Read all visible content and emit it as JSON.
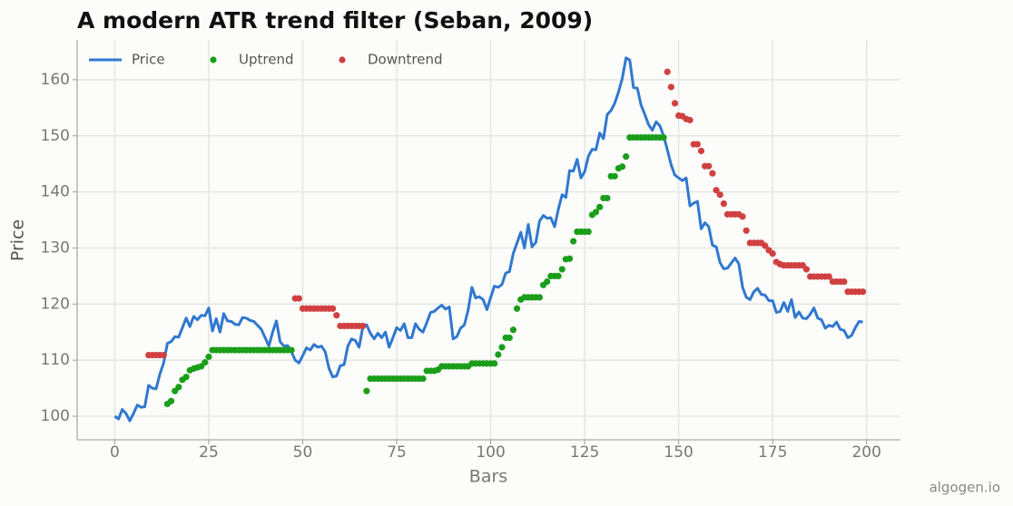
{
  "chart_data": {
    "type": "line",
    "title": "A modern ATR trend filter (Seban, 2009)",
    "xlabel": "Bars",
    "ylabel": "Price",
    "watermark": "algogen.io",
    "xlim": [
      -10,
      209
    ],
    "ylim": [
      95.8,
      167.1
    ],
    "xticks": [
      0,
      25,
      50,
      75,
      100,
      125,
      150,
      175,
      200
    ],
    "yticks": [
      100,
      110,
      120,
      130,
      140,
      150,
      160
    ],
    "grid": true,
    "legend": "upper left",
    "series": [
      {
        "name": "Price",
        "type": "line",
        "color": "#3078d0",
        "x": [
          0,
          1,
          2,
          3,
          4,
          5,
          6,
          7,
          8,
          9,
          10,
          11,
          12,
          13,
          14,
          15,
          16,
          17,
          18,
          19,
          20,
          21,
          22,
          23,
          24,
          25,
          26,
          27,
          28,
          29,
          30,
          31,
          32,
          33,
          34,
          35,
          36,
          37,
          38,
          39,
          40,
          41,
          42,
          43,
          44,
          45,
          46,
          47,
          48,
          49,
          50,
          51,
          52,
          53,
          54,
          55,
          56,
          57,
          58,
          59,
          60,
          61,
          62,
          63,
          64,
          65,
          66,
          67,
          68,
          69,
          70,
          71,
          72,
          73,
          74,
          75,
          76,
          77,
          78,
          79,
          80,
          81,
          82,
          83,
          84,
          85,
          86,
          87,
          88,
          89,
          90,
          91,
          92,
          93,
          94,
          95,
          96,
          97,
          98,
          99,
          100,
          101,
          102,
          103,
          104,
          105,
          106,
          107,
          108,
          109,
          110,
          111,
          112,
          113,
          114,
          115,
          116,
          117,
          118,
          119,
          120,
          121,
          122,
          123,
          124,
          125,
          126,
          127,
          128,
          129,
          130,
          131,
          132,
          133,
          134,
          135,
          136,
          137,
          138,
          139,
          140,
          141,
          142,
          143,
          144,
          145,
          146,
          147,
          148,
          149,
          150,
          151,
          152,
          153,
          154,
          155,
          156,
          157,
          158,
          159,
          160,
          161,
          162,
          163,
          164,
          165,
          166,
          167,
          168,
          169,
          170,
          171,
          172,
          173,
          174,
          175,
          176,
          177,
          178,
          179,
          180,
          181,
          182,
          183,
          184,
          185,
          186,
          187,
          188,
          189,
          190,
          191,
          192,
          193,
          194,
          195,
          196,
          197,
          198,
          199
        ],
        "values": [
          100,
          99.5,
          101.2,
          100.5,
          99.2,
          100.5,
          102,
          101.6,
          101.7,
          105.5,
          105,
          104.9,
          107.5,
          109.5,
          113,
          113.3,
          114.2,
          114.1,
          115.8,
          117.5,
          116,
          117.8,
          117.2,
          118,
          117.9,
          119.3,
          115.2,
          117.4,
          115,
          118.3,
          117,
          116.9,
          116.4,
          116.3,
          117.6,
          117.5,
          117.1,
          116.9,
          116.2,
          115.5,
          114,
          112.5,
          115,
          117,
          113.3,
          112.5,
          112.6,
          111.5,
          110,
          109.5,
          110.8,
          112.2,
          111.8,
          112.8,
          112.3,
          112.5,
          111.5,
          108.5,
          107,
          107.2,
          109,
          109.2,
          112.5,
          113.8,
          113.5,
          112.3,
          116,
          116.3,
          114.8,
          113.8,
          114.8,
          114,
          115,
          112.3,
          114,
          115.8,
          115.3,
          116.5,
          114,
          114,
          116.5,
          115.5,
          115,
          116.7,
          118.5,
          118.7,
          119.3,
          119.8,
          119.1,
          119.5,
          113.8,
          114.2,
          115.7,
          116.3,
          118.9,
          123,
          121.1,
          121.3,
          120.8,
          119,
          121.2,
          123.2,
          123,
          123.5,
          125.5,
          125.8,
          129,
          130.9,
          132.8,
          130,
          134.2,
          130.2,
          131,
          134.8,
          135.8,
          135.3,
          135.4,
          133.8,
          136.9,
          139.5,
          139,
          143.8,
          143.7,
          145.8,
          142.5,
          143.6,
          146.4,
          147.6,
          147.5,
          150.5,
          149.5,
          153.8,
          154.5,
          155.8,
          157.8,
          160.2,
          163.9,
          163.5,
          158.6,
          158.5,
          155.5,
          153.8,
          152,
          151,
          152.5,
          151.8,
          150,
          147.5,
          144.8,
          143,
          142.5,
          142,
          142.5,
          137.5,
          138,
          138.3,
          133.4,
          134.5,
          133.8,
          130.5,
          130.2,
          127.4,
          126.3,
          126.4,
          127.3,
          128.2,
          127.2,
          123,
          121.2,
          120.8,
          122.2,
          122.8,
          121.7,
          121.6,
          120.6,
          120.6,
          118.5,
          118.7,
          120.3,
          118.7,
          120.8,
          117.6,
          118.6,
          117.5,
          117.4,
          118.2,
          119.3,
          117.5,
          117.2,
          115.7,
          116.2,
          116,
          116.8,
          115.5,
          115.3,
          114,
          114.4,
          115.8,
          116.9,
          116.8
        ]
      },
      {
        "name": "Uptrend",
        "type": "scatter",
        "color": "#1a9e1a",
        "x": [
          14,
          15,
          16,
          17,
          18,
          19,
          20,
          21,
          22,
          23,
          24,
          25,
          26,
          27,
          28,
          29,
          30,
          31,
          32,
          33,
          34,
          35,
          36,
          37,
          38,
          39,
          40,
          41,
          42,
          43,
          44,
          45,
          46,
          47,
          67,
          68,
          69,
          70,
          71,
          72,
          73,
          74,
          75,
          76,
          77,
          78,
          79,
          80,
          81,
          82,
          83,
          84,
          85,
          86,
          87,
          88,
          89,
          90,
          91,
          92,
          93,
          94,
          95,
          96,
          97,
          98,
          99,
          100,
          101,
          102,
          103,
          104,
          105,
          106,
          107,
          108,
          109,
          110,
          111,
          112,
          113,
          114,
          115,
          116,
          117,
          118,
          119,
          120,
          121,
          122,
          123,
          124,
          125,
          126,
          127,
          128,
          129,
          130,
          131,
          132,
          133,
          134,
          135,
          136,
          137,
          138,
          139,
          140,
          141,
          142,
          143,
          144,
          145,
          146
        ],
        "values": [
          102.2,
          102.7,
          104.5,
          105.2,
          106.5,
          107,
          108.2,
          108.5,
          108.7,
          108.9,
          109.6,
          110.6,
          111.8,
          111.8,
          111.8,
          111.8,
          111.8,
          111.8,
          111.8,
          111.8,
          111.8,
          111.8,
          111.8,
          111.8,
          111.8,
          111.8,
          111.8,
          111.8,
          111.8,
          111.8,
          111.8,
          111.8,
          111.8,
          111.8,
          104.5,
          106.7,
          106.7,
          106.7,
          106.7,
          106.7,
          106.7,
          106.7,
          106.7,
          106.7,
          106.7,
          106.7,
          106.7,
          106.7,
          106.7,
          106.7,
          108.1,
          108.1,
          108.1,
          108.3,
          108.9,
          108.9,
          108.9,
          108.9,
          108.9,
          108.9,
          108.9,
          108.9,
          109.4,
          109.4,
          109.4,
          109.4,
          109.4,
          109.4,
          109.4,
          111,
          112.3,
          114,
          114,
          115.4,
          119.2,
          120.8,
          121.2,
          121.2,
          121.2,
          121.2,
          121.2,
          123.4,
          124,
          125,
          125,
          125,
          126.2,
          128,
          128.1,
          131.2,
          132.9,
          132.9,
          132.9,
          132.9,
          135.9,
          136.4,
          137.3,
          138.9,
          138.9,
          142.8,
          142.8,
          144.2,
          144.5,
          146.3,
          149.7,
          149.7,
          149.7,
          149.7,
          149.7,
          149.7,
          149.7,
          149.7,
          149.7,
          149.7
        ]
      },
      {
        "name": "Downtrend",
        "type": "scatter",
        "color": "#d04040",
        "x": [
          9,
          10,
          11,
          12,
          13,
          48,
          49,
          50,
          51,
          52,
          53,
          54,
          55,
          56,
          57,
          58,
          59,
          60,
          61,
          62,
          63,
          64,
          65,
          66,
          147,
          148,
          149,
          150,
          151,
          152,
          153,
          154,
          155,
          156,
          157,
          158,
          159,
          160,
          161,
          162,
          163,
          164,
          165,
          166,
          167,
          168,
          169,
          170,
          171,
          172,
          173,
          174,
          175,
          176,
          177,
          178,
          179,
          180,
          181,
          182,
          183,
          184,
          185,
          186,
          187,
          188,
          189,
          190,
          191,
          192,
          193,
          194,
          195,
          196,
          197,
          198,
          199
        ],
        "values": [
          110.9,
          110.9,
          110.9,
          110.9,
          110.9,
          121,
          121,
          119.2,
          119.2,
          119.2,
          119.2,
          119.2,
          119.2,
          119.2,
          119.2,
          119.2,
          118,
          116.1,
          116.1,
          116.1,
          116.1,
          116.1,
          116.1,
          116.1,
          161.4,
          158.7,
          155.8,
          153.6,
          153.5,
          153,
          152.8,
          148.5,
          148.5,
          147.3,
          144.6,
          144.6,
          143.3,
          140.3,
          139.5,
          137.9,
          136,
          136,
          136,
          136,
          135.6,
          133.1,
          130.9,
          130.9,
          130.9,
          130.9,
          130.4,
          129.6,
          129,
          127.5,
          127.1,
          126.9,
          126.9,
          126.9,
          126.9,
          126.9,
          126.9,
          126.2,
          124.9,
          124.9,
          124.9,
          124.9,
          124.9,
          124.9,
          124,
          124,
          124,
          124,
          122.2,
          122.2,
          122.2,
          122.2,
          122.2
        ]
      }
    ]
  }
}
